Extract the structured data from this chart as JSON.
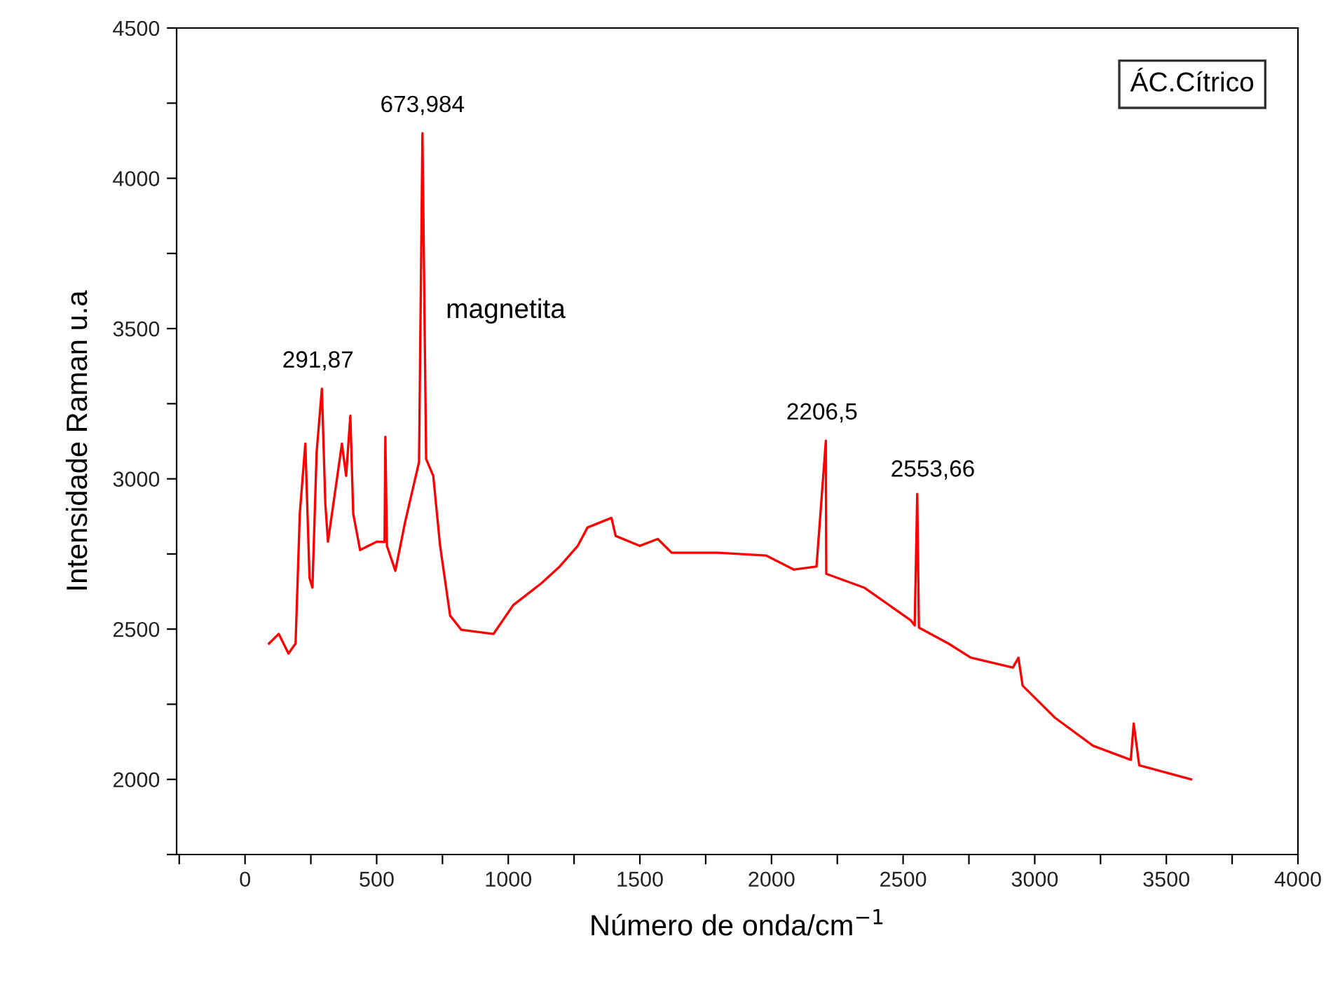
{
  "chart_data": {
    "type": "line",
    "xlabel": "Número de onda/cm$^{−1}$",
    "ylabel": "Intensidade Raman u.a",
    "xlim": [
      -260,
      4000
    ],
    "ylim": [
      1750,
      4500
    ],
    "xticks": [
      {
        "value": -250,
        "label": null
      },
      0,
      {
        "value": 250,
        "label": null
      },
      500,
      {
        "value": 750,
        "label": null
      },
      1000,
      {
        "value": 1250,
        "label": null
      },
      1500,
      {
        "value": 1750,
        "label": null
      },
      2000,
      {
        "value": 2250,
        "label": null
      },
      2500,
      {
        "value": 2750,
        "label": null
      },
      3000,
      {
        "value": 3250,
        "label": null
      },
      3500,
      {
        "value": 3750,
        "label": null
      },
      4000
    ],
    "yticks": [
      {
        "value": 1750,
        "label": null
      },
      2000,
      {
        "value": 2250,
        "label": null
      },
      2500,
      {
        "value": 2750,
        "label": null
      },
      3000,
      {
        "value": 3250,
        "label": null
      },
      3500,
      {
        "value": 3750,
        "label": null
      },
      4000,
      {
        "value": 4250,
        "label": null
      },
      4500
    ],
    "grid": false,
    "legend": "top right",
    "marker": "none",
    "line_style": "solid",
    "series": [
      {
        "name": "ÁC.Cítrico",
        "color": "#ff0000",
        "x": [
          91,
          128,
          165,
          192,
          208,
          229,
          245,
          256,
          272,
          291.87,
          305,
          315,
          341,
          368,
          384,
          400,
          411,
          437,
          501,
          530,
          533,
          539,
          571,
          608,
          661,
          673.984,
          688,
          715,
          741,
          779,
          821,
          944,
          1019,
          1125,
          1195,
          1264,
          1301,
          1392,
          1408,
          1499,
          1568,
          1621,
          1797,
          1979,
          2085,
          2171,
          2206.5,
          2208,
          2352,
          2528,
          2544,
          2553.66,
          2560,
          2672,
          2757,
          2917,
          2938,
          2954,
          3077,
          3221,
          3365,
          3376,
          3397,
          3594
        ],
        "values": [
          2452,
          2484,
          2419,
          2452,
          2884,
          3117,
          2670,
          2638,
          3089,
          3300,
          2917,
          2791,
          2950,
          3117,
          3010,
          3210,
          2884,
          2763,
          2791,
          2790,
          3140,
          2777,
          2694,
          2856,
          3056,
          4150,
          3066,
          3010,
          2777,
          2545,
          2498,
          2484,
          2580,
          2652,
          2708,
          2777,
          2838,
          2870,
          2810,
          2777,
          2800,
          2754,
          2754,
          2745,
          2698,
          2708,
          3127,
          2684,
          2638,
          2530,
          2512,
          2950,
          2505,
          2452,
          2405,
          2372,
          2405,
          2312,
          2205,
          2112,
          2065,
          2186,
          2047,
          2000
        ]
      }
    ],
    "annotations": [
      {
        "text": "291,87",
        "x": 291.87,
        "y": 3300
      },
      {
        "text": "673,984",
        "x": 673.984,
        "y": 4150
      },
      {
        "text": "magnetita",
        "x": 673.984,
        "y": 3850
      },
      {
        "text": "2206,5",
        "x": 2206.5,
        "y": 3127
      },
      {
        "text": "2553,66",
        "x": 2553.66,
        "y": 2950
      }
    ]
  }
}
